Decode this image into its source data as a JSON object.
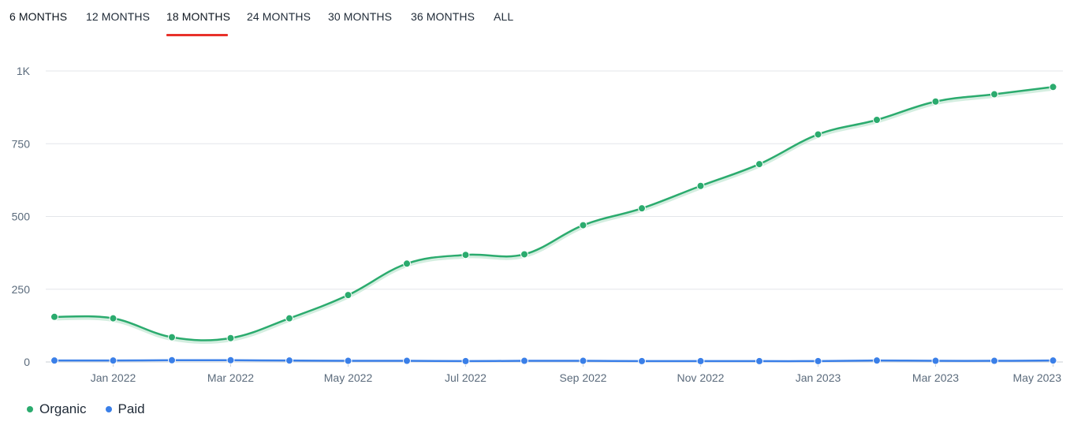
{
  "tabs": [
    {
      "label": "6 MONTHS"
    },
    {
      "label": "12 MONTHS"
    },
    {
      "label": "18 MONTHS"
    },
    {
      "label": "24 MONTHS"
    },
    {
      "label": "30 MONTHS"
    },
    {
      "label": "36 MONTHS"
    },
    {
      "label": "ALL"
    }
  ],
  "active_tab": "18 MONTHS",
  "colors": {
    "organic": "#2bab6e",
    "paid": "#3a7fe8",
    "active_underline": "#e8312a",
    "grid": "#e3e6ea",
    "axis_text": "#5b6b7c"
  },
  "legend": {
    "organic": "Organic",
    "paid": "Paid"
  },
  "chart_data": {
    "type": "line",
    "title": "",
    "xlabel": "",
    "ylabel": "",
    "ylim": [
      0,
      1000
    ],
    "yticks": [
      0,
      250,
      500,
      750,
      1000
    ],
    "ytick_labels": [
      "0",
      "250",
      "500",
      "750",
      "1K"
    ],
    "x_tick_labels": [
      "Jan 2022",
      "Mar 2022",
      "May 2022",
      "Jul 2022",
      "Sep 2022",
      "Nov 2022",
      "Jan 2023",
      "Mar 2023",
      "May 2023"
    ],
    "x": [
      "Dec 2021",
      "Jan 2022",
      "Feb 2022",
      "Mar 2022",
      "Apr 2022",
      "May 2022",
      "Jun 2022",
      "Jul 2022",
      "Aug 2022",
      "Sep 2022",
      "Oct 2022",
      "Nov 2022",
      "Dec 2022",
      "Jan 2023",
      "Feb 2023",
      "Mar 2023",
      "Apr 2023",
      "May 2023"
    ],
    "grid": true,
    "legend_position": "bottom-left",
    "series": [
      {
        "name": "Organic",
        "values": [
          155,
          150,
          85,
          82,
          150,
          230,
          338,
          368,
          370,
          470,
          528,
          605,
          680,
          782,
          832,
          895,
          920,
          945
        ]
      },
      {
        "name": "Paid",
        "values": [
          5,
          5,
          6,
          6,
          5,
          4,
          4,
          3,
          4,
          4,
          3,
          3,
          3,
          3,
          5,
          4,
          4,
          5
        ]
      }
    ]
  }
}
